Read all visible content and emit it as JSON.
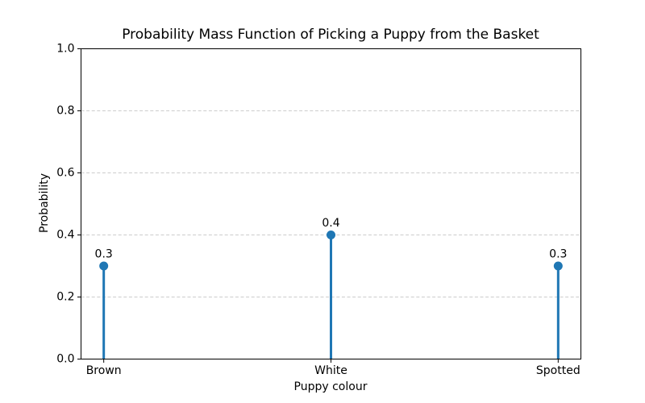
{
  "figure": {
    "background": "#ffffff"
  },
  "chart_data": {
    "type": "stem",
    "title": "Probability Mass Function of Picking a Puppy from the Basket",
    "xlabel": "Puppy colour",
    "ylabel": "Probability",
    "categories": [
      "Brown",
      "White",
      "Spotted"
    ],
    "values": [
      0.3,
      0.4,
      0.3
    ],
    "point_labels": [
      "0.3",
      "0.4",
      "0.3"
    ],
    "ylim": [
      0.0,
      1.0
    ],
    "yticks": [
      0.0,
      0.2,
      0.4,
      0.6,
      0.8,
      1.0
    ],
    "ytick_labels": [
      "0.0",
      "0.2",
      "0.4",
      "0.6",
      "0.8",
      "1.0"
    ],
    "grid": {
      "axis": "y",
      "linestyle": "dashed",
      "color": "#cccccc"
    },
    "legend": "none",
    "colors": {
      "stem": "#1f77b4",
      "marker": "#1f77b4",
      "spine": "#000000",
      "text": "#000000"
    }
  }
}
